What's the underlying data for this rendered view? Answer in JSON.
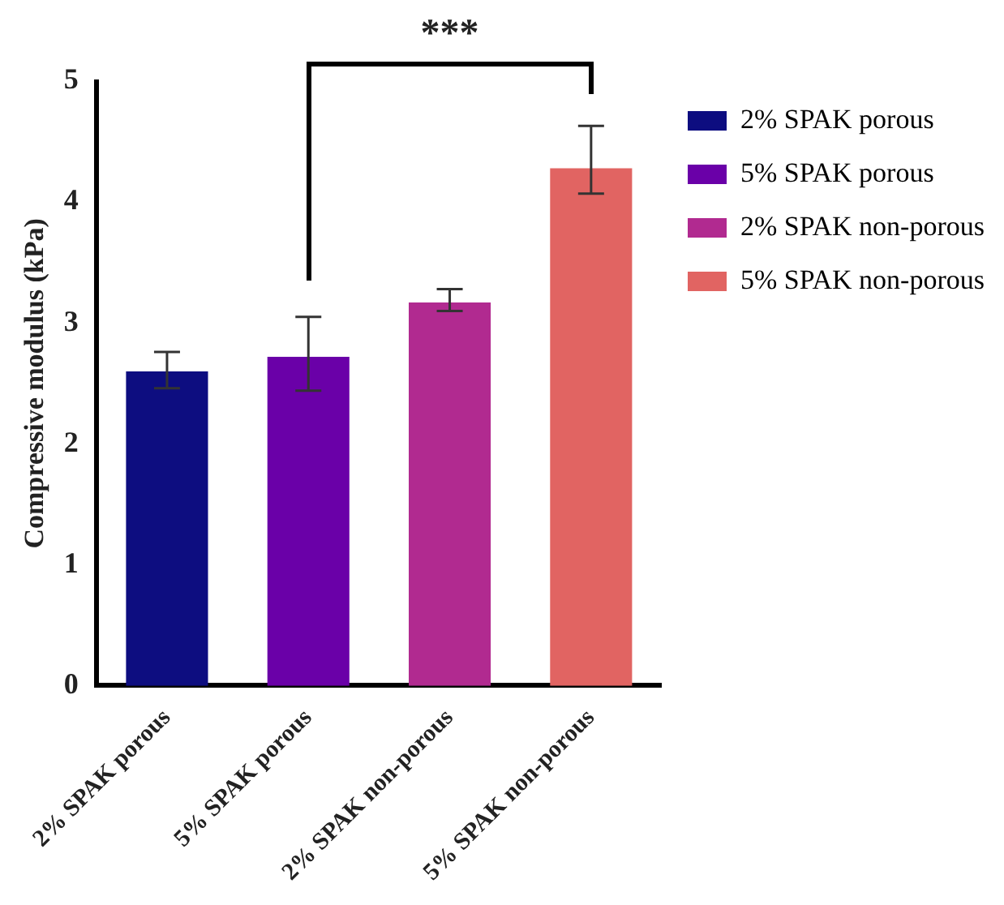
{
  "chart_data": {
    "type": "bar",
    "ylabel": "Compressive modulus (kPa)",
    "categories": [
      "2% SPAK porous",
      "5% SPAK porous",
      "2% SPAK non-porous",
      "5% SPAK non-porous"
    ],
    "series": [
      {
        "name": "2% SPAK porous",
        "color": "#0d0d80",
        "values": [
          2.6,
          null,
          null,
          null
        ],
        "errors": [
          [
            2.46,
            2.76
          ],
          null,
          null,
          null
        ]
      },
      {
        "name": "5% SPAK porous",
        "color": "#6a00a8",
        "values": [
          null,
          2.72,
          null,
          null
        ],
        "errors": [
          null,
          [
            2.44,
            3.05
          ],
          null,
          null
        ]
      },
      {
        "name": "2% SPAK non-porous",
        "color": "#b12a90",
        "values": [
          null,
          null,
          3.17,
          null
        ],
        "errors": [
          null,
          null,
          [
            3.1,
            3.28
          ],
          null
        ]
      },
      {
        "name": "5% SPAK non-porous",
        "color": "#e16462",
        "values": [
          null,
          null,
          null,
          4.28
        ],
        "errors": [
          null,
          null,
          null,
          [
            4.07,
            4.63
          ]
        ]
      }
    ],
    "ylim": [
      0,
      5
    ],
    "yticks": [
      0,
      1,
      2,
      3,
      4,
      5
    ],
    "grid": false,
    "legend": "right",
    "annotations": [
      "***"
    ]
  }
}
